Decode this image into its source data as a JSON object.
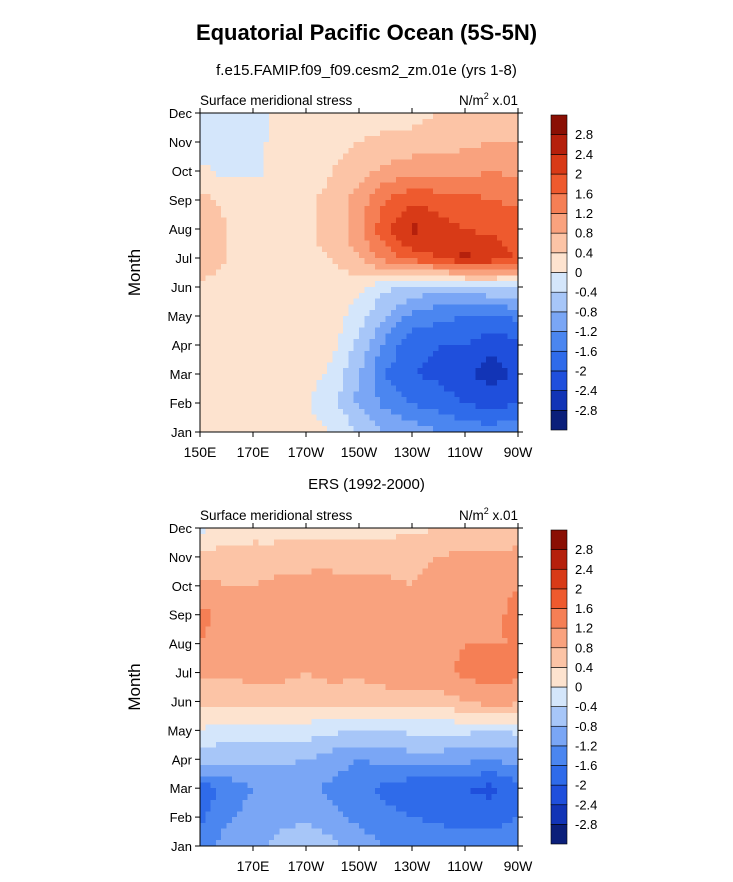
{
  "figure": {
    "title": "Equatorial Pacific Ocean (5S-5N)",
    "top_subtitle": "f.e15.FAMIP.f09_f09.cesm2_zm.01e (yrs 1-8)",
    "bottom_subtitle": "ERS (1992-2000)"
  },
  "colors": {
    "levels": [
      -2.8,
      -2.4,
      -2.0,
      -1.6,
      -1.2,
      -0.8,
      -0.4,
      0,
      0.4,
      0.8,
      1.2,
      1.6,
      2.0,
      2.4,
      2.8
    ],
    "fills": [
      "#0b1f7a",
      "#1234b6",
      "#1f4fdc",
      "#2f6bea",
      "#4b86f0",
      "#7aa6f5",
      "#a7c6f8",
      "#d4e6fb",
      "#fde3cf",
      "#fcc4a6",
      "#f9a27e",
      "#f57f55",
      "#ee5a2e",
      "#d83a17",
      "#b5200c",
      "#8a0f04"
    ]
  },
  "chart_data": [
    {
      "type": "heatmap",
      "panel": "top",
      "left_title": "Surface meridional stress",
      "units_base": "N/m",
      "units_sup": "2",
      "units_tail": " x.01",
      "ylabel": "Month",
      "months": [
        "Jan",
        "Feb",
        "Mar",
        "Apr",
        "May",
        "Jun",
        "Jul",
        "Aug",
        "Sep",
        "Oct",
        "Nov",
        "Dec"
      ],
      "x_ticks": [
        {
          "lon": 150,
          "label": "150E"
        },
        {
          "lon": 170,
          "label": "170E"
        },
        {
          "lon": 190,
          "label": "170W"
        },
        {
          "lon": 210,
          "label": "150W"
        },
        {
          "lon": 230,
          "label": "130W"
        },
        {
          "lon": 250,
          "label": "110W"
        },
        {
          "lon": 270,
          "label": "90W"
        }
      ],
      "xlim": [
        150,
        270
      ],
      "colorbar_labels": [
        "-2.8",
        "-2.4",
        "-2",
        "-1.6",
        "-1.2",
        "-0.8",
        "-0.4",
        "0",
        "0.4",
        "0.8",
        "1.2",
        "1.6",
        "2",
        "2.4",
        "2.8"
      ],
      "lons": [
        150,
        160,
        170,
        180,
        190,
        200,
        210,
        220,
        230,
        240,
        250,
        260,
        270
      ],
      "values": [
        [
          0.3,
          0.25,
          0.2,
          0.2,
          0.15,
          0.0,
          -0.4,
          -0.8,
          -1.0,
          -1.2,
          -1.3,
          -1.4,
          -1.2
        ],
        [
          0.2,
          0.2,
          0.2,
          0.15,
          0.05,
          -0.3,
          -0.9,
          -1.3,
          -1.6,
          -1.8,
          -2.0,
          -2.2,
          -2.0
        ],
        [
          0.2,
          0.3,
          0.3,
          0.25,
          0.2,
          -0.1,
          -0.8,
          -1.6,
          -2.0,
          -2.1,
          -2.3,
          -2.6,
          -2.3
        ],
        [
          0.2,
          0.3,
          0.3,
          0.3,
          0.25,
          0.1,
          -0.5,
          -1.3,
          -1.9,
          -2.0,
          -2.0,
          -2.3,
          -2.1
        ],
        [
          0.2,
          0.3,
          0.3,
          0.3,
          0.3,
          0.2,
          -0.2,
          -0.8,
          -1.3,
          -1.5,
          -1.6,
          -1.7,
          -1.5
        ],
        [
          0.3,
          0.3,
          0.3,
          0.3,
          0.3,
          0.25,
          0.1,
          -0.3,
          -0.5,
          -0.6,
          -0.5,
          -0.4,
          -0.3
        ],
        [
          0.7,
          0.4,
          0.3,
          0.3,
          0.35,
          0.4,
          0.8,
          1.4,
          1.8,
          2.0,
          2.5,
          2.3,
          1.9
        ],
        [
          0.8,
          0.4,
          0.3,
          0.3,
          0.35,
          0.5,
          1.1,
          1.9,
          2.5,
          2.2,
          2.0,
          1.9,
          1.8
        ],
        [
          0.5,
          0.3,
          0.3,
          0.3,
          0.35,
          0.5,
          1.0,
          1.6,
          1.9,
          1.8,
          1.7,
          1.6,
          1.5
        ],
        [
          0.1,
          -0.1,
          -0.1,
          0.1,
          0.2,
          0.4,
          0.6,
          0.9,
          1.1,
          1.1,
          1.1,
          1.2,
          1.1
        ],
        [
          -0.2,
          -0.2,
          -0.1,
          0.1,
          0.15,
          0.3,
          0.4,
          0.45,
          0.5,
          0.6,
          0.7,
          0.8,
          0.8
        ],
        [
          -0.2,
          -0.2,
          -0.1,
          0.05,
          0.1,
          0.2,
          0.3,
          0.3,
          0.3,
          0.4,
          0.5,
          0.6,
          0.6
        ]
      ]
    },
    {
      "type": "heatmap",
      "panel": "bottom",
      "left_title": "Surface meridional stress",
      "units_base": "N/m",
      "units_sup": "2",
      "units_tail": " x.01",
      "ylabel": "Month",
      "months": [
        "Jan",
        "Feb",
        "Mar",
        "Apr",
        "May",
        "Jun",
        "Jul",
        "Aug",
        "Sep",
        "Oct",
        "Nov",
        "Dec"
      ],
      "x_ticks": [
        {
          "lon": 170,
          "label": "170E"
        },
        {
          "lon": 190,
          "label": "170W"
        },
        {
          "lon": 210,
          "label": "150W"
        },
        {
          "lon": 230,
          "label": "130W"
        },
        {
          "lon": 250,
          "label": "110W"
        },
        {
          "lon": 270,
          "label": "90W"
        }
      ],
      "xlim": [
        150,
        270
      ],
      "colorbar_labels": [
        "-2.8",
        "-2.4",
        "-2",
        "-1.6",
        "-1.2",
        "-0.8",
        "-0.4",
        "0",
        "0.4",
        "0.8",
        "1.2",
        "1.6",
        "2",
        "2.4",
        "2.8"
      ],
      "lons": [
        150,
        160,
        170,
        180,
        190,
        200,
        210,
        220,
        230,
        240,
        250,
        260,
        270
      ],
      "values": [
        [
          -1.4,
          -1.0,
          -0.9,
          -0.7,
          -0.5,
          -0.7,
          -1.0,
          -1.2,
          -1.3,
          -1.3,
          -1.3,
          -1.4,
          -1.3
        ],
        [
          -1.7,
          -1.3,
          -1.0,
          -0.9,
          -0.9,
          -1.1,
          -1.3,
          -1.5,
          -1.6,
          -1.7,
          -1.8,
          -1.8,
          -1.6
        ],
        [
          -1.8,
          -1.5,
          -1.2,
          -1.1,
          -1.1,
          -1.3,
          -1.5,
          -1.7,
          -1.9,
          -1.9,
          -2.0,
          -2.1,
          -1.8
        ],
        [
          -0.6,
          -0.7,
          -0.7,
          -0.7,
          -0.8,
          -1.0,
          -1.2,
          -1.1,
          -1.0,
          -1.0,
          -1.1,
          -1.2,
          -1.0
        ],
        [
          0.0,
          -0.2,
          -0.2,
          -0.2,
          -0.2,
          -0.3,
          -0.4,
          -0.4,
          -0.3,
          -0.3,
          -0.3,
          -0.4,
          -0.3
        ],
        [
          0.5,
          0.5,
          0.6,
          0.6,
          0.5,
          0.6,
          0.5,
          0.6,
          0.7,
          0.6,
          0.8,
          1.0,
          0.9
        ],
        [
          0.9,
          0.9,
          0.9,
          0.9,
          0.8,
          0.9,
          0.9,
          1.0,
          1.0,
          1.1,
          1.3,
          1.4,
          1.3
        ],
        [
          1.2,
          1.0,
          1.0,
          1.0,
          1.0,
          1.1,
          1.2,
          1.1,
          1.1,
          1.0,
          1.2,
          1.2,
          1.2
        ],
        [
          1.3,
          1.1,
          1.0,
          1.0,
          1.1,
          1.2,
          1.1,
          1.0,
          1.0,
          1.1,
          1.1,
          1.1,
          1.3
        ],
        [
          0.9,
          0.8,
          0.8,
          0.9,
          1.0,
          1.0,
          0.9,
          0.9,
          0.8,
          0.9,
          1.0,
          1.1,
          1.2
        ],
        [
          0.5,
          0.6,
          0.6,
          0.6,
          0.6,
          0.6,
          0.6,
          0.6,
          0.7,
          0.8,
          0.9,
          0.9,
          1.0
        ],
        [
          -0.1,
          0.1,
          0.2,
          0.2,
          0.3,
          0.3,
          0.3,
          0.3,
          0.3,
          0.4,
          0.4,
          0.4,
          0.4
        ]
      ]
    }
  ]
}
